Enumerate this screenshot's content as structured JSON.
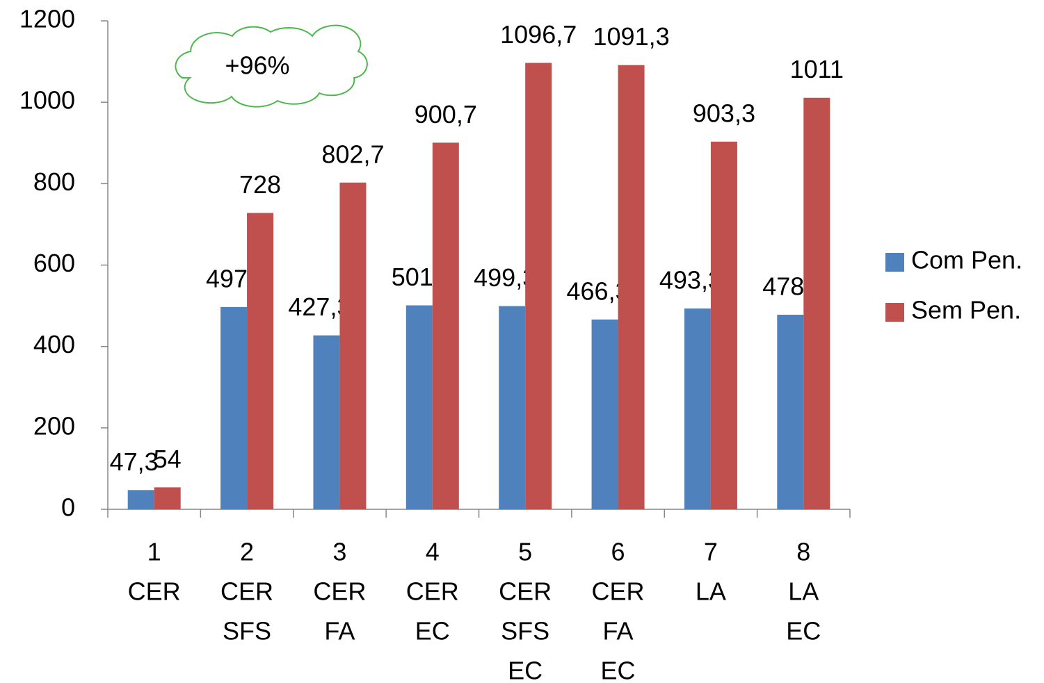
{
  "chart_data": {
    "type": "bar",
    "annotation": "+96%",
    "categories": [
      [
        "1",
        "CER"
      ],
      [
        "2",
        "CER",
        "SFS"
      ],
      [
        "3",
        "CER",
        "FA"
      ],
      [
        "4",
        "CER",
        "EC"
      ],
      [
        "5",
        "CER",
        "SFS",
        "EC"
      ],
      [
        "6",
        "CER",
        "FA",
        "EC"
      ],
      [
        "7",
        "LA"
      ],
      [
        "8",
        "LA",
        "EC"
      ]
    ],
    "series": [
      {
        "name": "Com Pen.",
        "color": "#4f81bd",
        "values": [
          47.3,
          497,
          427.3,
          501,
          499.3,
          466.3,
          493.3,
          478
        ],
        "value_labels": [
          "47,3",
          "497",
          "427,3",
          "501",
          "499,3",
          "466,3",
          "493,3",
          "478"
        ]
      },
      {
        "name": "Sem Pen.",
        "color": "#c0504d",
        "values": [
          54,
          728,
          802.7,
          900.7,
          1096.7,
          1091.3,
          903.3,
          1011
        ],
        "value_labels": [
          "54",
          "728",
          "802,7",
          "900,7",
          "1096,7",
          "1091,3",
          "903,3",
          "1011"
        ]
      }
    ],
    "ylim": [
      0,
      1200
    ],
    "yticks": [
      0,
      200,
      400,
      600,
      800,
      1000,
      1200
    ],
    "grid": false,
    "legend": "right"
  }
}
